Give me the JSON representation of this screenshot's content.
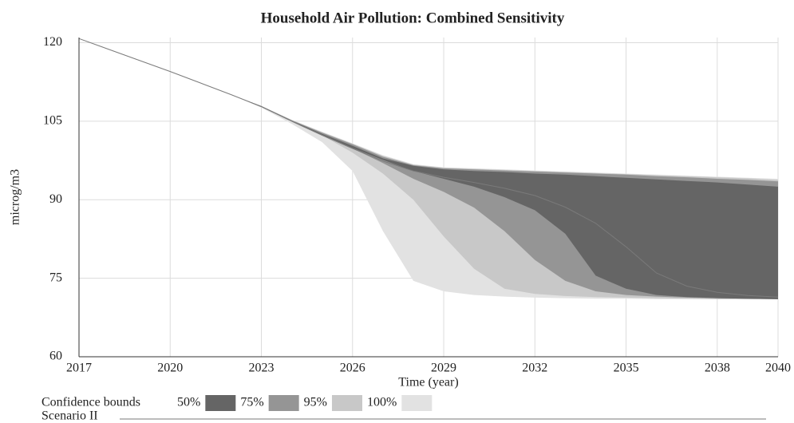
{
  "chart_data": {
    "type": "band",
    "title": "Household Air Pollution: Combined Sensitivity",
    "x_label": "Time (year)",
    "y_label": "microg/m3",
    "x": [
      2017,
      2018,
      2019,
      2020,
      2021,
      2022,
      2023,
      2024,
      2025,
      2026,
      2027,
      2028,
      2029,
      2030,
      2031,
      2032,
      2033,
      2034,
      2035,
      2036,
      2037,
      2038,
      2039,
      2040
    ],
    "xlim": [
      2017,
      2040
    ],
    "xticks": [
      2017,
      2020,
      2023,
      2026,
      2029,
      2032,
      2035,
      2038,
      2040
    ],
    "ylim": [
      60,
      121
    ],
    "yticks": [
      60,
      75,
      90,
      105,
      120
    ],
    "grid": true,
    "legend_title": "Confidence bounds",
    "series": [
      {
        "name": "100%",
        "color": "#e2e2e2",
        "upper": [
          120.8,
          118.7,
          116.6,
          114.5,
          112.3,
          110.1,
          107.9,
          105.3,
          103,
          100.8,
          98.5,
          96.8,
          96.2,
          96,
          95.8,
          95.6,
          95.4,
          95.2,
          95,
          94.8,
          94.6,
          94.4,
          94.2,
          94
        ],
        "lower": [
          120.8,
          118.7,
          116.6,
          114.5,
          112.3,
          110.1,
          107.6,
          104.5,
          101,
          95.5,
          84,
          74.5,
          72.5,
          71.8,
          71.5,
          71.3,
          71.2,
          71.1,
          71.1,
          71,
          71,
          71,
          71,
          71
        ]
      },
      {
        "name": "95%",
        "color": "#c8c8c8",
        "upper": [
          120.8,
          118.7,
          116.6,
          114.5,
          112.3,
          110.1,
          107.9,
          105.2,
          102.9,
          100.7,
          98.4,
          96.7,
          96.1,
          95.9,
          95.7,
          95.5,
          95.3,
          95.1,
          94.9,
          94.7,
          94.5,
          94.3,
          94.1,
          93.8
        ],
        "lower": [
          120.8,
          118.7,
          116.6,
          114.5,
          112.3,
          110.1,
          107.7,
          105,
          102.3,
          99,
          95,
          90,
          83,
          76.8,
          73,
          72,
          71.6,
          71.4,
          71.3,
          71.2,
          71.1,
          71,
          71,
          71
        ]
      },
      {
        "name": "75%",
        "color": "#959595",
        "upper": [
          120.8,
          118.7,
          116.6,
          114.5,
          112.3,
          110.1,
          107.9,
          105.2,
          102.8,
          100.6,
          98.2,
          96.6,
          96,
          95.8,
          95.6,
          95.4,
          95.2,
          95,
          94.8,
          94.5,
          94.3,
          94,
          93.8,
          93.5
        ],
        "lower": [
          120.8,
          118.7,
          116.6,
          114.5,
          112.3,
          110.1,
          107.8,
          105.1,
          102.5,
          99.8,
          97,
          94,
          91.5,
          88.5,
          84,
          78.5,
          74.5,
          72.5,
          71.8,
          71.5,
          71.3,
          71.2,
          71.1,
          71
        ]
      },
      {
        "name": "50%",
        "color": "#656565",
        "upper": [
          120.8,
          118.7,
          116.6,
          114.5,
          112.3,
          110.1,
          107.9,
          105.1,
          102.6,
          100.3,
          97.9,
          96.5,
          95.8,
          95.5,
          95.3,
          95,
          94.8,
          94.5,
          94.2,
          93.9,
          93.6,
          93.3,
          92.9,
          92.5
        ],
        "lower": [
          120.8,
          118.7,
          116.6,
          114.5,
          112.3,
          110.1,
          107.8,
          105,
          102.4,
          99.9,
          97.6,
          95.5,
          94,
          92.5,
          90.5,
          88,
          83.5,
          75.5,
          73,
          71.8,
          71.4,
          71.2,
          71.1,
          71
        ]
      }
    ],
    "line": {
      "name": "Scenario II",
      "color": "#7a7a7a",
      "values": [
        120.8,
        118.7,
        116.6,
        114.5,
        112.3,
        110.1,
        107.8,
        105,
        102.3,
        99.8,
        97.4,
        95.5,
        94.3,
        93.3,
        92.2,
        90.8,
        88.6,
        85.5,
        81,
        76,
        73.5,
        72.3,
        71.7,
        71.4
      ]
    }
  }
}
